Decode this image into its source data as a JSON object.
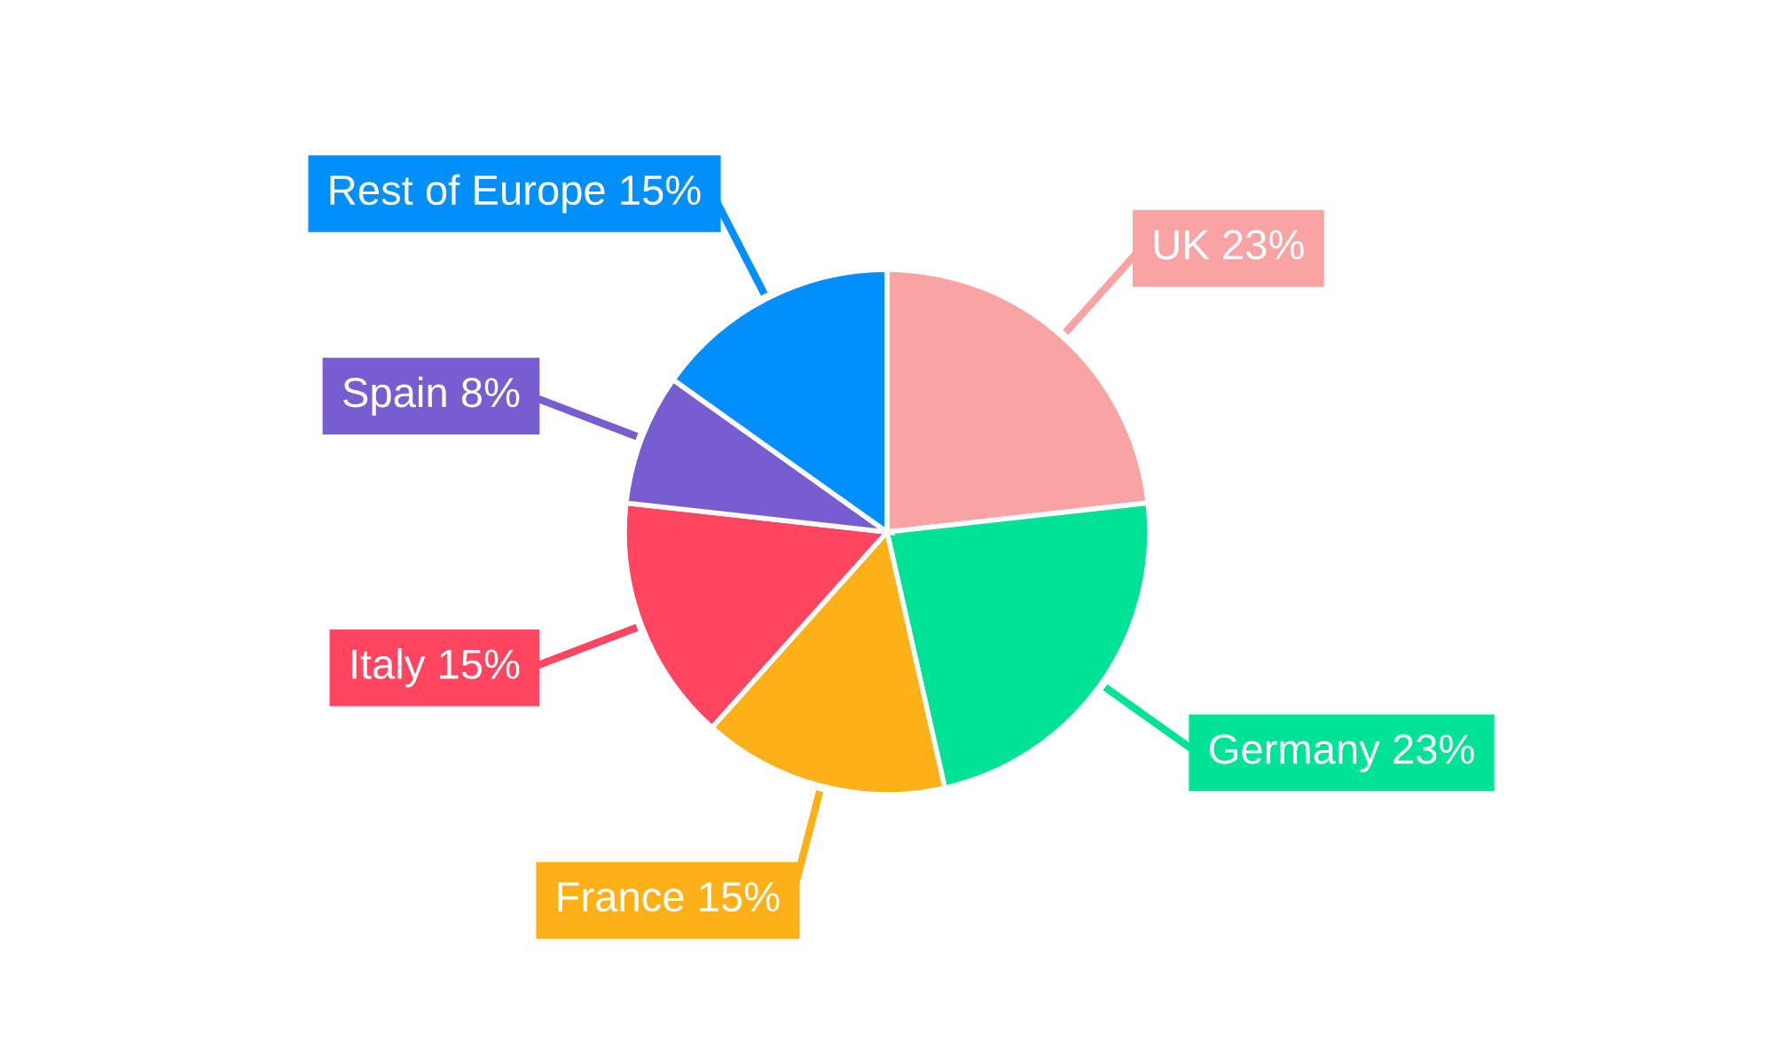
{
  "chart_data": {
    "type": "pie",
    "categories": [
      "UK",
      "Germany",
      "France",
      "Italy",
      "Spain",
      "Rest of Europe"
    ],
    "values": [
      23,
      23,
      15,
      15,
      8,
      15
    ],
    "value_labels": [
      "23%",
      "23%",
      "15%",
      "15%",
      "8%",
      "15%"
    ],
    "colors": [
      "#f9a3a4",
      "#00e396",
      "#feb019",
      "#ff4560",
      "#775dd0",
      "#008ffb"
    ]
  }
}
